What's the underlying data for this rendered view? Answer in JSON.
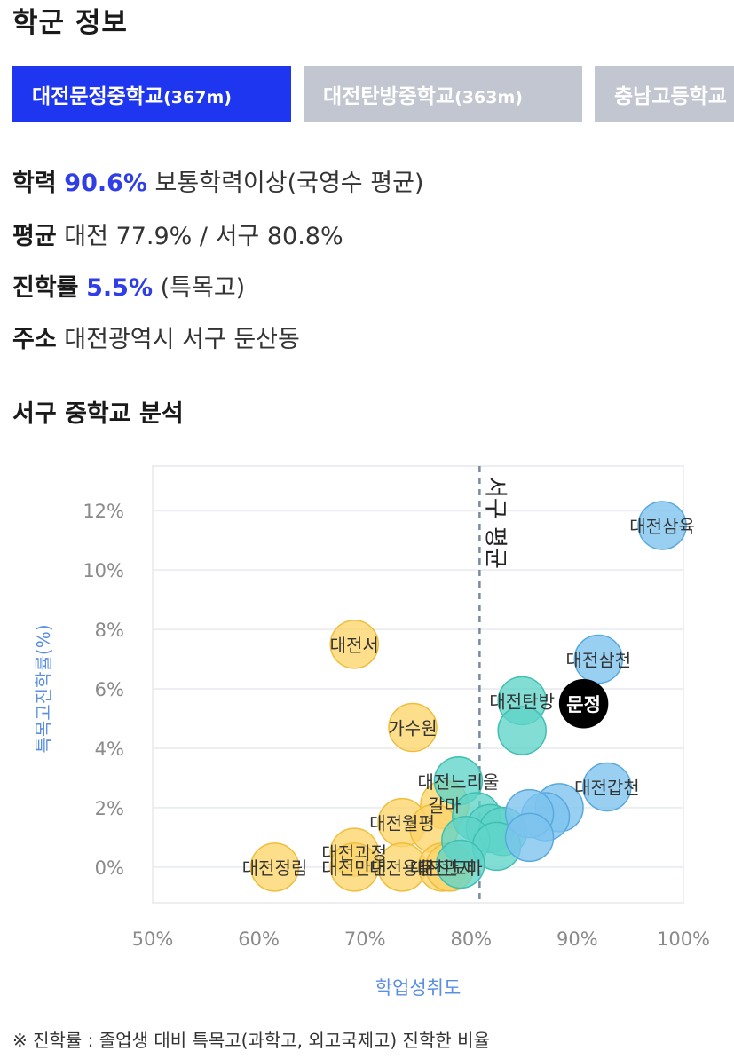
{
  "header": {
    "title": "학군 정보"
  },
  "tabs": [
    {
      "name": "대전문정중학교",
      "distance": "(367m)",
      "active": true
    },
    {
      "name": "대전탄방중학교",
      "distance": "(363m)",
      "active": false
    },
    {
      "name": "충남고등학교",
      "distance": "",
      "active": false
    }
  ],
  "info": {
    "academic": {
      "label": "학력",
      "value": "90.6%",
      "desc": "보통학력이상(국영수 평균)"
    },
    "average": {
      "label": "평균",
      "text": "대전 77.9% / 서구 80.8%"
    },
    "rate": {
      "label": "진학률",
      "value": "5.5%",
      "desc": "(특목고)"
    },
    "address": {
      "label": "주소",
      "text": "대전광역시 서구 둔산동"
    }
  },
  "analysis": {
    "title": "서구 중학교 분석"
  },
  "footnote": "※ 진학률 : 졸업생 대비 특목고(과학고, 외고국제고) 진학한 비율",
  "colors": {
    "accent": "#1f36f0",
    "tab_inactive": "#c2c6d0",
    "highlight_text": "#2f3ee6",
    "blue_bubble": "#7cc3ee",
    "teal_bubble": "#5fd4c8",
    "yellow_bubble": "#fbd56a",
    "selected_bubble": "#000000",
    "axis_label": "#5b8fe0"
  },
  "chart_data": {
    "type": "scatter",
    "xlabel": "학업성취도",
    "ylabel": "특목고진학률(%)",
    "xlim": [
      50,
      100
    ],
    "ylim": [
      -1.2,
      13.5
    ],
    "xticks": [
      "50%",
      "60%",
      "70%",
      "80%",
      "90%",
      "100%"
    ],
    "yticks": [
      "0%",
      "2%",
      "4%",
      "6%",
      "8%",
      "10%",
      "12%"
    ],
    "reference_line": {
      "x": 80.8,
      "label": "서구 평균"
    },
    "points": [
      {
        "label": "대전삼육",
        "x": 98,
        "y": 11.5,
        "group": "blue"
      },
      {
        "label": "대전삼천",
        "x": 92,
        "y": 7.0,
        "group": "blue"
      },
      {
        "label": "대전문정",
        "x": 90.6,
        "y": 5.5,
        "group": "selected"
      },
      {
        "label": "대전갑천",
        "x": 92.8,
        "y": 2.7,
        "group": "blue"
      },
      {
        "label": "",
        "x": 88.3,
        "y": 2.0,
        "group": "blue"
      },
      {
        "label": "",
        "x": 87.0,
        "y": 1.7,
        "group": "blue"
      },
      {
        "label": "",
        "x": 85.5,
        "y": 1.8,
        "group": "blue"
      },
      {
        "label": "",
        "x": 85.5,
        "y": 1.0,
        "group": "blue"
      },
      {
        "label": "대전탄방",
        "x": 84.8,
        "y": 5.6,
        "group": "teal"
      },
      {
        "label": "",
        "x": 84.8,
        "y": 4.6,
        "group": "teal"
      },
      {
        "label": "대전느리울",
        "x": 78.8,
        "y": 2.9,
        "group": "teal"
      },
      {
        "label": "",
        "x": 80.5,
        "y": 1.7,
        "group": "teal"
      },
      {
        "label": "",
        "x": 81.8,
        "y": 1.3,
        "group": "teal"
      },
      {
        "label": "",
        "x": 83.0,
        "y": 1.2,
        "group": "teal"
      },
      {
        "label": "",
        "x": 79.5,
        "y": 0.9,
        "group": "teal"
      },
      {
        "label": "",
        "x": 82.4,
        "y": 0.7,
        "group": "teal"
      },
      {
        "label": "",
        "x": 79.0,
        "y": 0.1,
        "group": "teal"
      },
      {
        "label": "대전서",
        "x": 69,
        "y": 7.5,
        "group": "yellow"
      },
      {
        "label": "가수원",
        "x": 74.5,
        "y": 4.7,
        "group": "yellow"
      },
      {
        "label": "갈마",
        "x": 77.5,
        "y": 2.1,
        "group": "yellow"
      },
      {
        "label": "대전월평",
        "x": 73.5,
        "y": 1.5,
        "group": "yellow"
      },
      {
        "label": "",
        "x": 76.5,
        "y": 1.3,
        "group": "yellow"
      },
      {
        "label": "대전괴정",
        "x": 69,
        "y": 0.5,
        "group": "yellow"
      },
      {
        "label": "대전정림",
        "x": 61.5,
        "y": 0.0,
        "group": "yellow"
      },
      {
        "label": "대전만년",
        "x": 69,
        "y": 0.0,
        "group": "yellow"
      },
      {
        "label": "대전용문",
        "x": 73.5,
        "y": 0.0,
        "group": "yellow"
      },
      {
        "label": "대전관저",
        "x": 77.3,
        "y": 0.0,
        "group": "yellow"
      },
      {
        "label": "대전도마",
        "x": 78.0,
        "y": 0.0,
        "group": "yellow"
      }
    ]
  }
}
